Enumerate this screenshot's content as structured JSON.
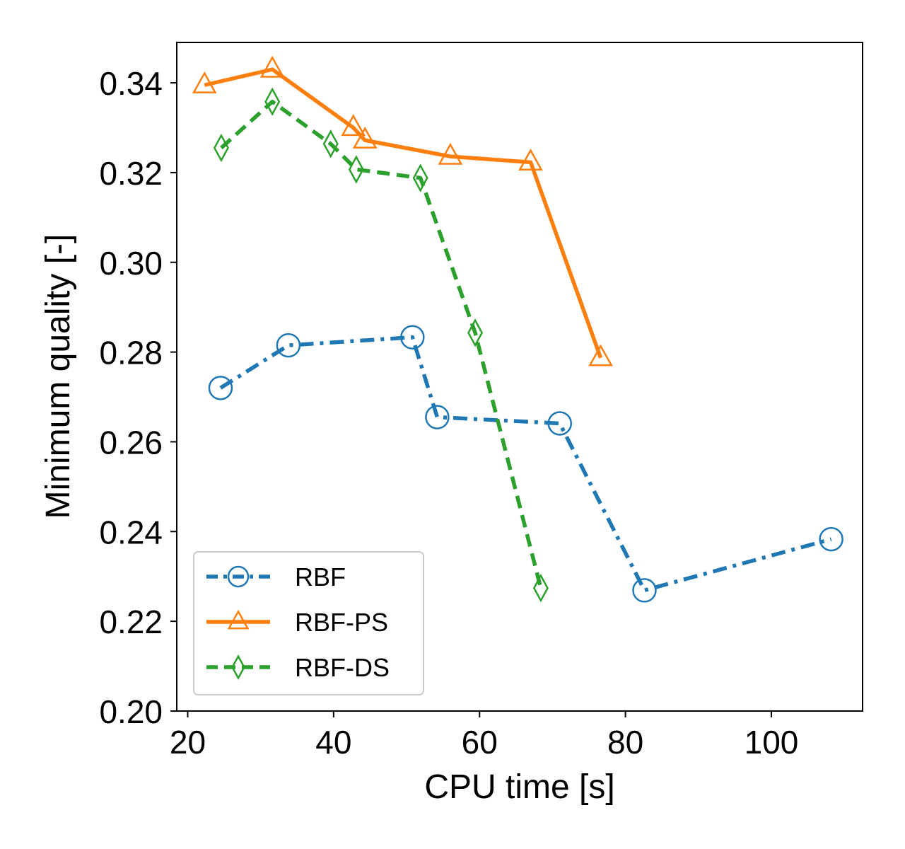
{
  "chart_data": {
    "type": "line",
    "title": "",
    "xlabel": "CPU time [s]",
    "ylabel": "Minimum quality [-]",
    "xlim": [
      18.5,
      112.5
    ],
    "ylim": [
      0.2,
      0.349
    ],
    "xticks": [
      20,
      40,
      60,
      80,
      100
    ],
    "xtick_labels": [
      "20",
      "40",
      "60",
      "80",
      "100"
    ],
    "yticks": [
      0.2,
      0.22,
      0.24,
      0.26,
      0.28,
      0.3,
      0.32,
      0.34
    ],
    "ytick_labels": [
      "0.20",
      "0.22",
      "0.24",
      "0.26",
      "0.28",
      "0.30",
      "0.32",
      "0.34"
    ],
    "grid": false,
    "legend_position": "lower-left",
    "series": [
      {
        "name": "RBF",
        "color": "#1f77b4",
        "line_style": "dash-dot",
        "marker": "circle",
        "x": [
          24.5,
          33.8,
          50.8,
          54.2,
          71.0,
          82.6,
          108.2
        ],
        "y": [
          0.272,
          0.2815,
          0.2833,
          0.2655,
          0.2641,
          0.2269,
          0.2383
        ]
      },
      {
        "name": "RBF-PS",
        "color": "#ff7f0e",
        "line_style": "solid",
        "marker": "triangle",
        "x": [
          22.3,
          31.6,
          42.7,
          44.3,
          56.0,
          67.0,
          76.6
        ],
        "y": [
          0.3395,
          0.343,
          0.33,
          0.3272,
          0.3236,
          0.3223,
          0.2787
        ]
      },
      {
        "name": "RBF-DS",
        "color": "#2ca02c",
        "line_style": "dashed",
        "marker": "diamond",
        "x": [
          24.6,
          31.6,
          39.6,
          43.1,
          51.9,
          59.4,
          68.4
        ],
        "y": [
          0.3255,
          0.3358,
          0.3264,
          0.3207,
          0.3188,
          0.2843,
          0.2274
        ]
      }
    ]
  }
}
